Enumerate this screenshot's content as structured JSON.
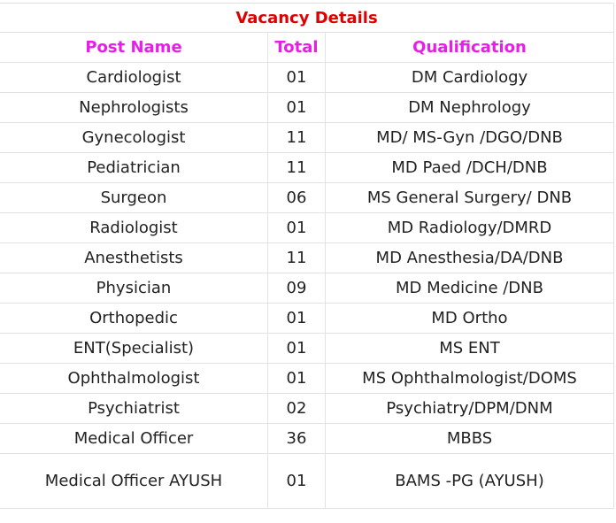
{
  "title": "Vacancy Details",
  "headers": {
    "post": "Post Name",
    "total": "Total",
    "qualification": "Qualification"
  },
  "rows": [
    {
      "post": "Cardiologist",
      "total": "01",
      "qualification": "DM Cardiology"
    },
    {
      "post": "Nephrologists",
      "total": "01",
      "qualification": "DM Nephrology"
    },
    {
      "post": "Gynecologist",
      "total": "11",
      "qualification": "MD/ MS-Gyn /DGO/DNB"
    },
    {
      "post": "Pediatrician",
      "total": "11",
      "qualification": "MD Paed /DCH/DNB"
    },
    {
      "post": "Surgeon",
      "total": "06",
      "qualification": "MS General Surgery/ DNB"
    },
    {
      "post": "Radiologist",
      "total": "01",
      "qualification": "MD Radiology/DMRD"
    },
    {
      "post": "Anesthetists",
      "total": "11",
      "qualification": "MD Anesthesia/DA/DNB"
    },
    {
      "post": "Physician",
      "total": "09",
      "qualification": "MD Medicine /DNB"
    },
    {
      "post": "Orthopedic",
      "total": "01",
      "qualification": "MD Ortho"
    },
    {
      "post": "ENT(Specialist)",
      "total": "01",
      "qualification": "MS ENT"
    },
    {
      "post": "Ophthalmologist",
      "total": "01",
      "qualification": "MS Ophthalmologist/DOMS"
    },
    {
      "post": "Psychiatrist",
      "total": "02",
      "qualification": "Psychiatry/DPM/DNM"
    },
    {
      "post": "Medical Officer",
      "total": "36",
      "qualification": "MBBS"
    },
    {
      "post": "Medical Officer AYUSH",
      "total": "01",
      "qualification": "BAMS -PG (AYUSH)"
    }
  ]
}
